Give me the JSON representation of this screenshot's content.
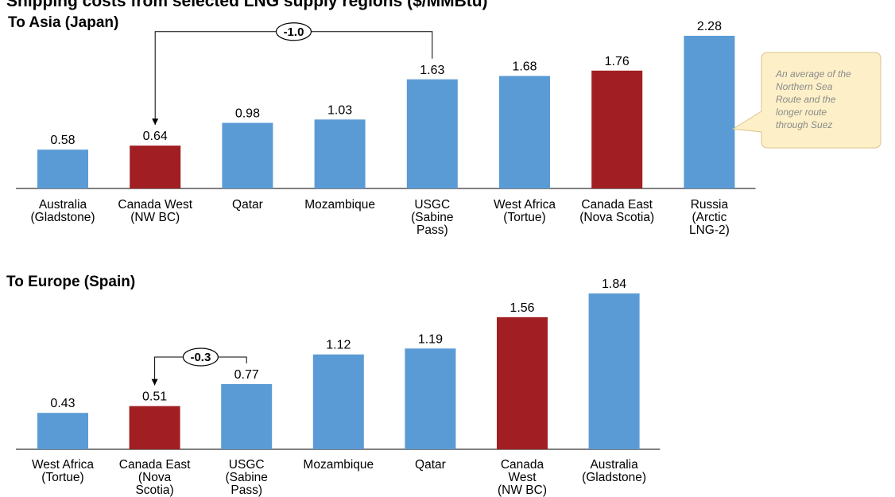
{
  "chart_data": [
    {
      "type": "bar",
      "title": "Shipping costs from selected LNG supply regions ($/MMBtu)",
      "subtitle": "To Asia (Japan)",
      "categories": [
        [
          "Australia",
          "(Gladstone)"
        ],
        [
          "Canada West",
          "(NW BC)"
        ],
        [
          "Qatar"
        ],
        [
          "Mozambique"
        ],
        [
          "USGC",
          "(Sabine",
          "Pass)"
        ],
        [
          "West Africa",
          "(Tortue)"
        ],
        [
          "Canada East",
          "(Nova Scotia)"
        ],
        [
          "Russia",
          "(Arctic",
          "LNG-2)"
        ]
      ],
      "values": [
        0.58,
        0.64,
        0.98,
        1.03,
        1.63,
        1.68,
        1.76,
        2.28
      ],
      "value_labels": [
        "0.58",
        "0.64",
        "0.98",
        "1.03",
        "1.63",
        "1.68",
        "1.76",
        "2.28"
      ],
      "highlight_color": "#a11f22",
      "bar_color": "#5b9bd5",
      "highlight_indices": [
        1,
        6
      ],
      "difference_annotation": {
        "label": "-1.0",
        "from_index": 4,
        "to_index": 1
      },
      "callout": {
        "lines": [
          "An average of the",
          "Northern Sea",
          "Route and the",
          "longer route",
          "through Suez"
        ],
        "target_index": 7
      },
      "grid": false,
      "legend": "none"
    },
    {
      "type": "bar",
      "subtitle": "To Europe (Spain)",
      "categories": [
        [
          "West Africa",
          "(Tortue)"
        ],
        [
          "Canada East",
          "(Nova",
          "Scotia)"
        ],
        [
          "USGC",
          "(Sabine",
          "Pass)"
        ],
        [
          "Mozambique"
        ],
        [
          "Qatar"
        ],
        [
          "Canada",
          "West",
          "(NW BC)"
        ],
        [
          "Australia",
          "(Gladstone)"
        ]
      ],
      "values": [
        0.43,
        0.51,
        0.77,
        1.12,
        1.19,
        1.56,
        1.84
      ],
      "value_labels": [
        "0.43",
        "0.51",
        "0.77",
        "1.12",
        "1.19",
        "1.56",
        "1.84"
      ],
      "highlight_color": "#a11f22",
      "bar_color": "#5b9bd5",
      "highlight_indices": [
        1,
        5
      ],
      "difference_annotation": {
        "label": "-0.3",
        "from_index": 2,
        "to_index": 1
      },
      "grid": false,
      "legend": "none"
    }
  ]
}
